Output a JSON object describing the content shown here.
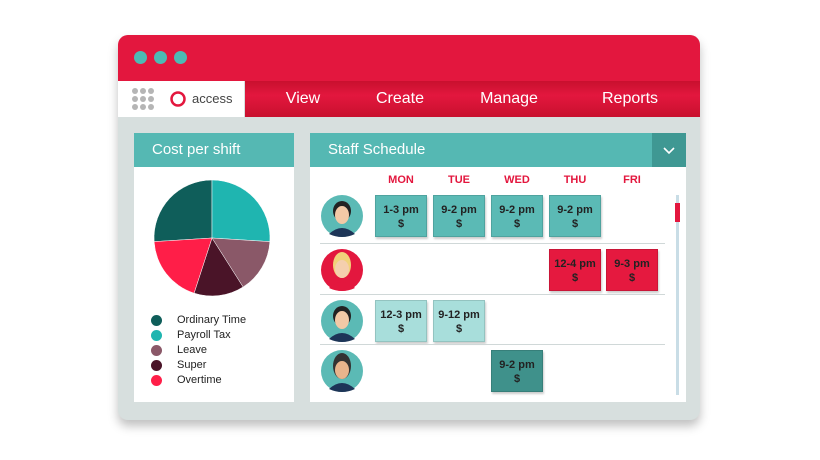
{
  "window": {
    "brand": "access",
    "menu": [
      "View",
      "Create",
      "Manage",
      "Reports"
    ]
  },
  "chart_data": {
    "type": "pie",
    "title": "Cost per shift",
    "categories": [
      "Ordinary Time",
      "Payroll Tax",
      "Leave",
      "Super",
      "Overtime"
    ],
    "values": [
      26,
      26,
      15,
      14,
      19
    ],
    "colors": [
      "#0f5e5a",
      "#1fb5b0",
      "#8a5868",
      "#4a1428",
      "#ff1e48"
    ]
  },
  "schedule": {
    "title": "Staff Schedule",
    "days": [
      "MON",
      "TUE",
      "WED",
      "THU",
      "FRI"
    ],
    "rows": [
      {
        "color": "#5bbab5",
        "cells": [
          {
            "time": "1-3 pm",
            "rate": "$"
          },
          {
            "time": "9-2 pm",
            "rate": "$"
          },
          {
            "time": "9-2 pm",
            "rate": "$"
          },
          {
            "time": "9-2 pm",
            "rate": "$"
          },
          null
        ]
      },
      {
        "color": "#e5193f",
        "cells": [
          null,
          null,
          null,
          {
            "time": "12-4 pm",
            "rate": "$"
          },
          {
            "time": "9-3 pm",
            "rate": "$"
          }
        ]
      },
      {
        "color": "#a8dedb",
        "cells": [
          {
            "time": "12-3 pm",
            "rate": "$"
          },
          {
            "time": "9-12 pm",
            "rate": "$"
          },
          null,
          null,
          null
        ]
      },
      {
        "color": "#3f918b",
        "cells": [
          null,
          null,
          {
            "time": "9-2 pm",
            "rate": "$"
          },
          null,
          null
        ]
      }
    ]
  }
}
